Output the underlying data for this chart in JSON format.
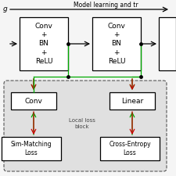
{
  "bg_color": "#f5f5f5",
  "box_color": "#ffffff",
  "box_edge": "#000000",
  "green_arrow": "#00aa00",
  "red_arrow": "#cc0000",
  "font_size": 6.5,
  "small_font": 5.5,
  "title_text": "Model learning and tr",
  "block1_text": "Conv\n+\nBN\n+\nReLU",
  "block2_text": "Conv\n+\nBN\n+\nReLU",
  "conv_text": "Conv",
  "linear_text": "Linear",
  "local_loss_text": "Local loss\nblock",
  "sim_text": "Sim-Matching\nLoss",
  "ce_text": "Cross-Entropy\nLoss",
  "input_label": "g"
}
